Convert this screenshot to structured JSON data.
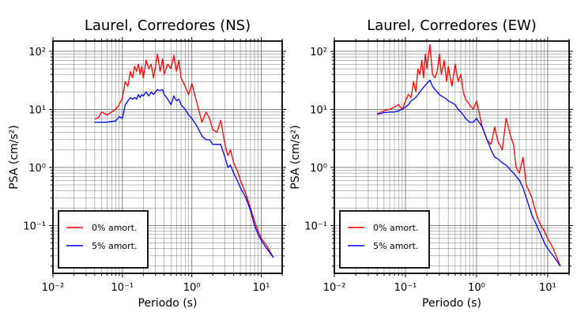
{
  "chart_data": [
    {
      "type": "line",
      "title": "Laurel, Corredores (NS)",
      "xlabel": "Periodo (s)",
      "ylabel": "PSA (cm/s²)",
      "xscale": "log",
      "yscale": "log",
      "xlim": [
        0.01,
        20
      ],
      "ylim": [
        0.015,
        150
      ],
      "x_ticks": [
        "10⁻²",
        "10⁻¹",
        "10⁰",
        "10¹"
      ],
      "y_ticks": [
        "10⁻¹",
        "10⁰",
        "10¹",
        "10²"
      ],
      "grid": true,
      "legend_position": "bottom-left",
      "series": [
        {
          "name": "0% amort.",
          "color": "#ff0000",
          "x": [
            0.04,
            0.045,
            0.05,
            0.055,
            0.06,
            0.07,
            0.08,
            0.09,
            0.1,
            0.11,
            0.12,
            0.13,
            0.14,
            0.15,
            0.16,
            0.17,
            0.18,
            0.19,
            0.2,
            0.22,
            0.24,
            0.26,
            0.28,
            0.3,
            0.32,
            0.35,
            0.38,
            0.4,
            0.45,
            0.5,
            0.55,
            0.6,
            0.65,
            0.7,
            0.8,
            0.9,
            1.0,
            1.2,
            1.4,
            1.6,
            1.8,
            2.0,
            2.3,
            2.6,
            3.0,
            3.3,
            3.6,
            4.0,
            4.5,
            5.0,
            6.0,
            7.0,
            8.0,
            9.0,
            10.0,
            12.0,
            15.0
          ],
          "values": [
            6.8,
            7.2,
            9.0,
            8.5,
            8.0,
            9.0,
            10.0,
            12.0,
            16.0,
            30.0,
            25.0,
            45.0,
            35.0,
            55.0,
            45.0,
            60.0,
            40.0,
            55.0,
            35.0,
            70.0,
            50.0,
            60.0,
            35.0,
            55.0,
            90.0,
            45.0,
            75.0,
            40.0,
            60.0,
            50.0,
            85.0,
            45.0,
            70.0,
            35.0,
            25.0,
            18.0,
            28.0,
            12.0,
            6.0,
            9.0,
            7.0,
            4.5,
            4.0,
            6.5,
            2.5,
            1.6,
            2.0,
            1.2,
            0.9,
            0.6,
            0.35,
            0.2,
            0.12,
            0.08,
            0.06,
            0.045,
            0.028
          ]
        },
        {
          "name": "5% amort.",
          "color": "#0000ff",
          "x": [
            0.04,
            0.045,
            0.05,
            0.055,
            0.06,
            0.07,
            0.08,
            0.09,
            0.1,
            0.11,
            0.12,
            0.13,
            0.14,
            0.15,
            0.16,
            0.17,
            0.18,
            0.19,
            0.2,
            0.22,
            0.24,
            0.26,
            0.28,
            0.3,
            0.32,
            0.35,
            0.38,
            0.4,
            0.45,
            0.5,
            0.55,
            0.6,
            0.65,
            0.7,
            0.8,
            0.9,
            1.0,
            1.2,
            1.4,
            1.6,
            1.8,
            2.0,
            2.3,
            2.6,
            3.0,
            3.3,
            3.6,
            4.0,
            4.5,
            5.0,
            6.0,
            7.0,
            8.0,
            9.0,
            10.0,
            12.0,
            15.0
          ],
          "values": [
            6.0,
            6.0,
            6.0,
            6.0,
            6.0,
            6.2,
            6.3,
            7.5,
            7.0,
            12.0,
            14.0,
            16.0,
            15.0,
            16.0,
            15.0,
            18.0,
            16.0,
            18.0,
            17.0,
            20.0,
            17.0,
            20.0,
            18.0,
            20.0,
            22.0,
            21.0,
            22.0,
            18.0,
            15.0,
            12.0,
            17.0,
            14.0,
            15.0,
            12.0,
            10.0,
            8.0,
            7.0,
            5.0,
            3.5,
            3.0,
            3.0,
            2.5,
            2.5,
            2.5,
            1.5,
            1.0,
            1.1,
            0.8,
            0.6,
            0.45,
            0.3,
            0.18,
            0.1,
            0.07,
            0.055,
            0.04,
            0.028
          ]
        }
      ]
    },
    {
      "type": "line",
      "title": "Laurel, Corredores (EW)",
      "xlabel": "Periodo (s)",
      "ylabel": "PSA (cm/s²)",
      "xscale": "log",
      "yscale": "log",
      "xlim": [
        0.01,
        20
      ],
      "ylim": [
        0.015,
        150
      ],
      "x_ticks": [
        "10⁻²",
        "10⁻¹",
        "10⁰",
        "10¹"
      ],
      "y_ticks": [
        "10⁻¹",
        "10⁰",
        "10¹",
        "10²"
      ],
      "grid": true,
      "legend_position": "bottom-left",
      "series": [
        {
          "name": "0% amort.",
          "color": "#ff0000",
          "x": [
            0.04,
            0.045,
            0.05,
            0.06,
            0.07,
            0.08,
            0.09,
            0.1,
            0.11,
            0.12,
            0.13,
            0.14,
            0.15,
            0.16,
            0.17,
            0.18,
            0.19,
            0.2,
            0.22,
            0.24,
            0.26,
            0.28,
            0.3,
            0.32,
            0.35,
            0.38,
            0.4,
            0.45,
            0.5,
            0.55,
            0.6,
            0.65,
            0.7,
            0.8,
            0.9,
            1.0,
            1.2,
            1.4,
            1.6,
            1.8,
            2.0,
            2.3,
            2.6,
            3.0,
            3.3,
            3.6,
            4.0,
            4.5,
            5.0,
            6.0,
            7.0,
            8.0,
            9.0,
            10.0,
            12.0,
            15.0
          ],
          "values": [
            8.0,
            9.0,
            9.5,
            10.0,
            11.0,
            12.0,
            10.0,
            14.0,
            18.0,
            16.0,
            30.0,
            20.0,
            50.0,
            40.0,
            70.0,
            35.0,
            90.0,
            50.0,
            130.0,
            40.0,
            35.0,
            45.0,
            90.0,
            40.0,
            70.0,
            30.0,
            55.0,
            25.0,
            60.0,
            30.0,
            40.0,
            20.0,
            15.0,
            12.0,
            10.0,
            14.0,
            5.0,
            3.0,
            2.5,
            5.0,
            2.8,
            2.0,
            7.0,
            3.5,
            2.5,
            1.0,
            0.8,
            1.5,
            0.5,
            0.3,
            0.15,
            0.1,
            0.08,
            0.06,
            0.04,
            0.02
          ]
        },
        {
          "name": "5% amort.",
          "color": "#0000ff",
          "x": [
            0.04,
            0.045,
            0.05,
            0.06,
            0.07,
            0.08,
            0.09,
            0.1,
            0.11,
            0.12,
            0.13,
            0.14,
            0.15,
            0.16,
            0.17,
            0.18,
            0.19,
            0.2,
            0.22,
            0.24,
            0.26,
            0.28,
            0.3,
            0.32,
            0.35,
            0.38,
            0.4,
            0.45,
            0.5,
            0.55,
            0.6,
            0.65,
            0.7,
            0.8,
            0.9,
            1.0,
            1.2,
            1.4,
            1.6,
            1.8,
            2.0,
            2.3,
            2.6,
            3.0,
            3.3,
            3.6,
            4.0,
            4.5,
            5.0,
            6.0,
            7.0,
            8.0,
            9.0,
            10.0,
            12.0,
            15.0
          ],
          "values": [
            8.5,
            8.5,
            8.8,
            9.0,
            9.0,
            9.5,
            10.0,
            11.0,
            12.0,
            14.0,
            15.0,
            16.0,
            18.0,
            20.0,
            22.0,
            24.0,
            26.0,
            28.0,
            32.0,
            25.0,
            22.0,
            20.0,
            18.0,
            17.0,
            16.0,
            15.0,
            14.0,
            13.0,
            12.0,
            10.0,
            9.0,
            8.0,
            7.0,
            6.0,
            6.0,
            7.0,
            5.0,
            3.0,
            2.0,
            1.5,
            1.4,
            1.2,
            1.1,
            0.9,
            0.8,
            0.7,
            0.6,
            0.45,
            0.3,
            0.15,
            0.1,
            0.07,
            0.05,
            0.04,
            0.03,
            0.02
          ]
        }
      ]
    }
  ]
}
